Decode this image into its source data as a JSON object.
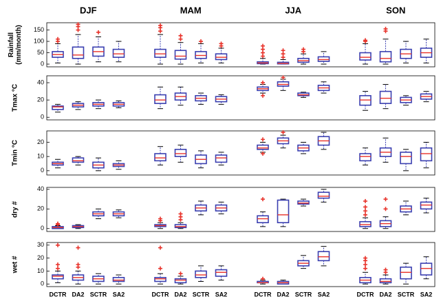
{
  "chart_data": {
    "type": "box",
    "seasons": [
      "DJF",
      "MAM",
      "JJA",
      "SON"
    ],
    "categories": [
      "DCTR",
      "DA2",
      "SCTR",
      "SA2"
    ],
    "box_color": "#3a3fb0",
    "median_color": "#e8322a",
    "outlier_color": "#e8322a",
    "panels": [
      {
        "ylabel": [
          "Rainfall",
          "(mm/month)"
        ],
        "ylim": [
          -12,
          182
        ],
        "yticks": [
          0,
          50,
          100,
          150
        ],
        "groups": [
          [
            {
              "lo": 5,
              "q1": 30,
              "med": 42,
              "q3": 55,
              "hi": 90,
              "out": [
                100,
                110
              ]
            },
            {
              "lo": 0,
              "q1": 25,
              "med": 40,
              "q3": 75,
              "hi": 130,
              "out": [
                150,
                165,
                175
              ]
            },
            {
              "lo": 10,
              "q1": 35,
              "med": 55,
              "q3": 75,
              "hi": 120,
              "out": [
                140
              ]
            },
            {
              "lo": 10,
              "q1": 30,
              "med": 45,
              "q3": 65,
              "hi": 100,
              "out": []
            }
          ],
          [
            {
              "lo": 0,
              "q1": 30,
              "med": 45,
              "q3": 65,
              "hi": 130,
              "out": [
                145,
                160,
                170
              ]
            },
            {
              "lo": 0,
              "q1": 22,
              "med": 35,
              "q3": 60,
              "hi": 95,
              "out": [
                110,
                125
              ]
            },
            {
              "lo": 5,
              "q1": 25,
              "med": 38,
              "q3": 55,
              "hi": 90,
              "out": [
                100
              ]
            },
            {
              "lo": 5,
              "q1": 20,
              "med": 30,
              "q3": 45,
              "hi": 70,
              "out": [
                80,
                90
              ]
            }
          ],
          [
            {
              "lo": 0,
              "q1": 2,
              "med": 5,
              "q3": 10,
              "hi": 25,
              "out": [
                35,
                50,
                65,
                80
              ]
            },
            {
              "lo": 0,
              "q1": 1,
              "med": 3,
              "q3": 8,
              "hi": 20,
              "out": [
                30,
                45,
                60
              ]
            },
            {
              "lo": 0,
              "q1": 8,
              "med": 15,
              "q3": 25,
              "hi": 45,
              "out": [
                55,
                65
              ]
            },
            {
              "lo": 0,
              "q1": 12,
              "med": 20,
              "q3": 32,
              "hi": 55,
              "out": []
            }
          ],
          [
            {
              "lo": 0,
              "q1": 18,
              "med": 30,
              "q3": 50,
              "hi": 90,
              "out": [
                100,
                105
              ]
            },
            {
              "lo": 0,
              "q1": 10,
              "med": 25,
              "q3": 55,
              "hi": 110,
              "out": [
                145,
                155
              ]
            },
            {
              "lo": 5,
              "q1": 25,
              "med": 45,
              "q3": 65,
              "hi": 100,
              "out": []
            },
            {
              "lo": 5,
              "q1": 30,
              "med": 50,
              "q3": 70,
              "hi": 110,
              "out": []
            }
          ]
        ]
      },
      {
        "ylabel": "Tmax °C",
        "ylim": [
          -3,
          48
        ],
        "yticks": [
          0,
          20,
          40
        ],
        "groups": [
          [
            {
              "lo": 6,
              "q1": 9,
              "med": 12,
              "q3": 13,
              "hi": 15,
              "out": []
            },
            {
              "lo": 9,
              "q1": 12,
              "med": 14,
              "q3": 16,
              "hi": 18,
              "out": []
            },
            {
              "lo": 10,
              "q1": 13,
              "med": 15,
              "q3": 17,
              "hi": 20,
              "out": []
            },
            {
              "lo": 11,
              "q1": 13,
              "med": 15,
              "q3": 17,
              "hi": 19,
              "out": []
            }
          ],
          [
            {
              "lo": 10,
              "q1": 16,
              "med": 20,
              "q3": 26,
              "hi": 35,
              "out": []
            },
            {
              "lo": 14,
              "q1": 20,
              "med": 24,
              "q3": 28,
              "hi": 35,
              "out": []
            },
            {
              "lo": 15,
              "q1": 19,
              "med": 22,
              "q3": 25,
              "hi": 28,
              "out": []
            },
            {
              "lo": 15,
              "q1": 18,
              "med": 21,
              "q3": 24,
              "hi": 26,
              "out": []
            }
          ],
          [
            {
              "lo": 28,
              "q1": 31,
              "med": 33,
              "q3": 35,
              "hi": 38,
              "out": [
                25,
                40
              ]
            },
            {
              "lo": 31,
              "q1": 36,
              "med": 38,
              "q3": 41,
              "hi": 44,
              "out": [
                46
              ]
            },
            {
              "lo": 23,
              "q1": 25,
              "med": 26,
              "q3": 28,
              "hi": 29,
              "out": []
            },
            {
              "lo": 28,
              "q1": 31,
              "med": 34,
              "q3": 37,
              "hi": 41,
              "out": []
            }
          ],
          [
            {
              "lo": 8,
              "q1": 14,
              "med": 20,
              "q3": 25,
              "hi": 30,
              "out": []
            },
            {
              "lo": 10,
              "q1": 16,
              "med": 22,
              "q3": 30,
              "hi": 38,
              "out": []
            },
            {
              "lo": 14,
              "q1": 17,
              "med": 20,
              "q3": 23,
              "hi": 25,
              "out": []
            },
            {
              "lo": 18,
              "q1": 21,
              "med": 24,
              "q3": 27,
              "hi": 30,
              "out": []
            }
          ]
        ]
      },
      {
        "ylabel": "Tmin °C",
        "ylim": [
          -3,
          28
        ],
        "yticks": [
          0,
          10,
          20
        ],
        "groups": [
          [
            {
              "lo": 2,
              "q1": 4,
              "med": 5,
              "q3": 6,
              "hi": 8,
              "out": []
            },
            {
              "lo": 4,
              "q1": 6,
              "med": 7,
              "q3": 9,
              "hi": 10,
              "out": []
            },
            {
              "lo": 0,
              "q1": 2,
              "med": 4,
              "q3": 6,
              "hi": 9,
              "out": []
            },
            {
              "lo": 1,
              "q1": 3,
              "med": 4,
              "q3": 5,
              "hi": 7,
              "out": []
            }
          ],
          [
            {
              "lo": 4,
              "q1": 7,
              "med": 9,
              "q3": 12,
              "hi": 17,
              "out": []
            },
            {
              "lo": 6,
              "q1": 10,
              "med": 12,
              "q3": 15,
              "hi": 18,
              "out": []
            },
            {
              "lo": 2,
              "q1": 5,
              "med": 8,
              "q3": 11,
              "hi": 14,
              "out": []
            },
            {
              "lo": 4,
              "q1": 6,
              "med": 9,
              "q3": 11,
              "hi": 13,
              "out": []
            }
          ],
          [
            {
              "lo": 13,
              "q1": 15,
              "med": 16,
              "q3": 18,
              "hi": 20,
              "out": [
                12,
                22
              ]
            },
            {
              "lo": 16,
              "q1": 19,
              "med": 21,
              "q3": 23,
              "hi": 25,
              "out": [
                27
              ]
            },
            {
              "lo": 12,
              "q1": 14,
              "med": 16,
              "q3": 18,
              "hi": 20,
              "out": []
            },
            {
              "lo": 15,
              "q1": 18,
              "med": 21,
              "q3": 24,
              "hi": 27,
              "out": []
            }
          ],
          [
            {
              "lo": 4,
              "q1": 7,
              "med": 10,
              "q3": 12,
              "hi": 16,
              "out": []
            },
            {
              "lo": 6,
              "q1": 10,
              "med": 13,
              "q3": 16,
              "hi": 23,
              "out": []
            },
            {
              "lo": 0,
              "q1": 5,
              "med": 10,
              "q3": 13,
              "hi": 15,
              "out": []
            },
            {
              "lo": 2,
              "q1": 7,
              "med": 12,
              "q3": 16,
              "hi": 20,
              "out": []
            }
          ]
        ]
      },
      {
        "ylabel": "dry #",
        "ylim": [
          -3,
          42
        ],
        "yticks": [
          0,
          20,
          40
        ],
        "groups": [
          [
            {
              "lo": 0,
              "q1": 0,
              "med": 1,
              "q3": 2,
              "hi": 3,
              "out": [
                4,
                5
              ]
            },
            {
              "lo": 0,
              "q1": 1,
              "med": 2,
              "q3": 3,
              "hi": 4,
              "out": []
            },
            {
              "lo": 10,
              "q1": 13,
              "med": 15,
              "q3": 17,
              "hi": 20,
              "out": []
            },
            {
              "lo": 11,
              "q1": 13,
              "med": 15,
              "q3": 17,
              "hi": 19,
              "out": []
            }
          ],
          [
            {
              "lo": 0,
              "q1": 2,
              "med": 3,
              "q3": 4,
              "hi": 6,
              "out": [
                8,
                10
              ]
            },
            {
              "lo": 0,
              "q1": 1,
              "med": 2,
              "q3": 4,
              "hi": 6,
              "out": [
                9,
                12,
                15
              ]
            },
            {
              "lo": 14,
              "q1": 18,
              "med": 21,
              "q3": 24,
              "hi": 28,
              "out": []
            },
            {
              "lo": 15,
              "q1": 18,
              "med": 21,
              "q3": 24,
              "hi": 27,
              "out": []
            }
          ],
          [
            {
              "lo": 2,
              "q1": 6,
              "med": 10,
              "q3": 13,
              "hi": 17,
              "out": [
                30
              ]
            },
            {
              "lo": 2,
              "q1": 6,
              "med": 14,
              "q3": 29,
              "hi": 30,
              "out": []
            },
            {
              "lo": 23,
              "q1": 25,
              "med": 26,
              "q3": 28,
              "hi": 30,
              "out": []
            },
            {
              "lo": 27,
              "q1": 31,
              "med": 33,
              "q3": 37,
              "hi": 40,
              "out": []
            }
          ],
          [
            {
              "lo": 0,
              "q1": 2,
              "med": 4,
              "q3": 7,
              "hi": 11,
              "out": [
                14,
                18,
                22,
                28
              ]
            },
            {
              "lo": 0,
              "q1": 2,
              "med": 5,
              "q3": 8,
              "hi": 12,
              "out": [
                20,
                30
              ]
            },
            {
              "lo": 14,
              "q1": 17,
              "med": 20,
              "q3": 23,
              "hi": 28,
              "out": []
            },
            {
              "lo": 16,
              "q1": 20,
              "med": 24,
              "q3": 27,
              "hi": 31,
              "out": []
            }
          ]
        ]
      },
      {
        "ylabel": "wet #",
        "ylim": [
          -2,
          32
        ],
        "yticks": [
          0,
          10,
          20,
          30
        ],
        "groups": [
          [
            {
              "lo": 1,
              "q1": 4,
              "med": 6,
              "q3": 7,
              "hi": 10,
              "out": [
                12,
                15,
                30
              ]
            },
            {
              "lo": 0,
              "q1": 3,
              "med": 5,
              "q3": 7,
              "hi": 10,
              "out": [
                13,
                15,
                28
              ]
            },
            {
              "lo": 0,
              "q1": 2,
              "med": 4,
              "q3": 6,
              "hi": 8,
              "out": []
            },
            {
              "lo": 0,
              "q1": 2,
              "med": 3,
              "q3": 5,
              "hi": 7,
              "out": []
            }
          ],
          [
            {
              "lo": 0,
              "q1": 2,
              "med": 4,
              "q3": 5,
              "hi": 8,
              "out": [
                12,
                28
              ]
            },
            {
              "lo": 0,
              "q1": 1,
              "med": 3,
              "q3": 4,
              "hi": 6,
              "out": [
                8
              ]
            },
            {
              "lo": 2,
              "q1": 5,
              "med": 7,
              "q3": 10,
              "hi": 14,
              "out": []
            },
            {
              "lo": 3,
              "q1": 6,
              "med": 9,
              "q3": 11,
              "hi": 14,
              "out": []
            }
          ],
          [
            {
              "lo": 0,
              "q1": 1,
              "med": 1,
              "q3": 2,
              "hi": 3,
              "out": [
                4
              ]
            },
            {
              "lo": 0,
              "q1": 0,
              "med": 1,
              "q3": 2,
              "hi": 3,
              "out": []
            },
            {
              "lo": 12,
              "q1": 14,
              "med": 16,
              "q3": 18,
              "hi": 22,
              "out": []
            },
            {
              "lo": 14,
              "q1": 18,
              "med": 21,
              "q3": 25,
              "hi": 29,
              "out": []
            }
          ],
          [
            {
              "lo": 0,
              "q1": 1,
              "med": 3,
              "q3": 5,
              "hi": 9,
              "out": [
                12,
                15,
                18,
                20
              ]
            },
            {
              "lo": 0,
              "q1": 1,
              "med": 2,
              "q3": 4,
              "hi": 7,
              "out": [
                9,
                11
              ]
            },
            {
              "lo": 0,
              "q1": 4,
              "med": 9,
              "q3": 13,
              "hi": 16,
              "out": []
            },
            {
              "lo": 4,
              "q1": 7,
              "med": 12,
              "q3": 16,
              "hi": 21,
              "out": []
            }
          ]
        ]
      }
    ]
  }
}
